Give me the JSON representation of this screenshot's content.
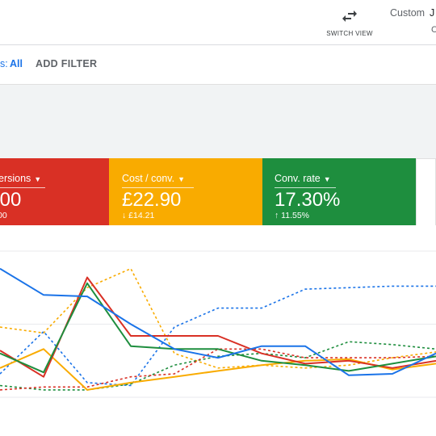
{
  "header": {
    "switch_view_label": "SWITCH VIEW",
    "custom_label": "Custom",
    "custom_extra": "J",
    "custom_extra2": "C"
  },
  "filters": {
    "prefix": "s:",
    "value": "All",
    "add_filter_label": "ADD FILTER"
  },
  "scorecards": [
    {
      "metric": "ersions",
      "value": ".00",
      "change": "00",
      "change_icon": "",
      "color": "#d93025"
    },
    {
      "metric": "Cost / conv.",
      "value": "£22.90",
      "change": "£14.21",
      "change_icon": "↓",
      "color": "#f9ab00"
    },
    {
      "metric": "Conv. rate",
      "value": "17.30%",
      "change": "11.55%",
      "change_icon": "↑",
      "color": "#1e8e3e"
    }
  ],
  "chart_data": {
    "type": "line",
    "x": [
      0,
      1,
      2,
      3,
      4,
      5,
      6,
      7,
      8,
      9,
      10
    ],
    "ylim": [
      0,
      100
    ],
    "grid": true,
    "series": [
      {
        "color": "#1a73e8",
        "style": "solid",
        "values": [
          88,
          70,
          69,
          50,
          33,
          27,
          35,
          35,
          15,
          16,
          30
        ]
      },
      {
        "color": "#d93025",
        "style": "solid",
        "values": [
          32,
          14,
          82,
          42,
          42,
          42,
          30,
          23,
          25,
          20,
          25
        ]
      },
      {
        "color": "#1e8e3e",
        "style": "solid",
        "values": [
          30,
          17,
          78,
          35,
          33,
          33,
          25,
          22,
          18,
          23,
          28
        ]
      },
      {
        "color": "#f9ab00",
        "style": "solid",
        "values": [
          20,
          33,
          5,
          10,
          14,
          18,
          22,
          25,
          26,
          19,
          23
        ]
      },
      {
        "color": "#1a73e8",
        "style": "dashed",
        "values": [
          16,
          45,
          10,
          8,
          48,
          61,
          61,
          74,
          75,
          76,
          76
        ]
      },
      {
        "color": "#f9ab00",
        "style": "dashed",
        "values": [
          48,
          44,
          75,
          88,
          30,
          20,
          22,
          20,
          22,
          27,
          31
        ]
      },
      {
        "color": "#1e8e3e",
        "style": "dashed",
        "values": [
          8,
          5,
          5,
          9,
          22,
          28,
          30,
          27,
          38,
          36,
          33
        ]
      },
      {
        "color": "#d93025",
        "style": "dashed",
        "values": [
          5,
          7,
          7,
          14,
          16,
          33,
          33,
          27,
          27,
          27,
          28
        ]
      }
    ]
  }
}
